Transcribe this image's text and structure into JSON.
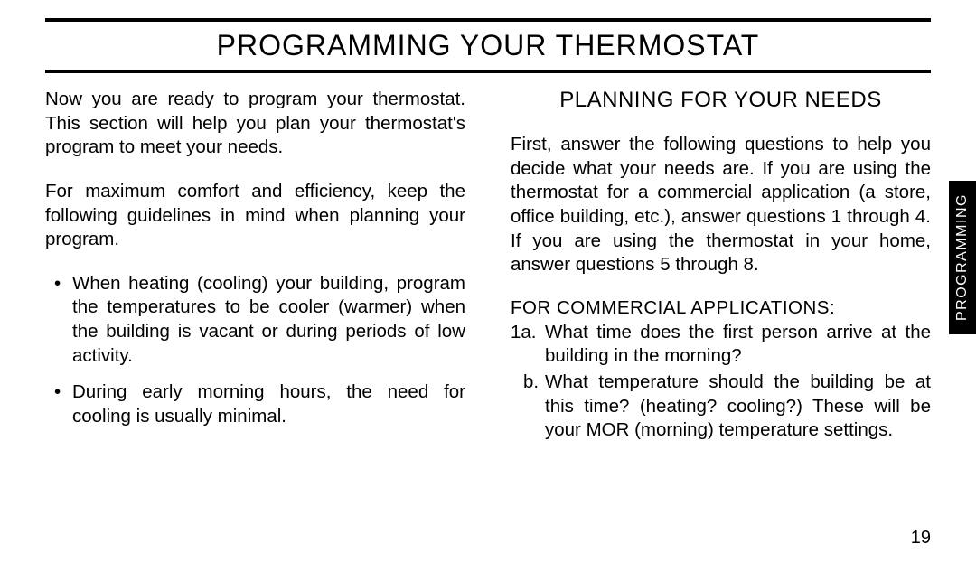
{
  "title": "PROGRAMMING YOUR THERMOSTAT",
  "side_tab": "PROGRAMMING",
  "page_number": "19",
  "left": {
    "para1": "Now you are ready to program your thermostat. This section will help you plan your thermostat's program to meet your needs.",
    "para2": "For maximum comfort and efficiency, keep the following guidelines in mind when planning your program.",
    "bullets": [
      "When heating (cooling) your building, program the temperatures to be cooler (warmer) when the building is vacant or during periods of low activity.",
      "During early morning hours, the need for cooling is usually minimal."
    ]
  },
  "right": {
    "subtitle": "PLANNING FOR YOUR NEEDS",
    "para1": "First, answer the following questions to help you decide what your needs are.  If you are using the thermostat for a commercial application (a store, office building, etc.), answer questions 1 through 4.  If you are using the thermostat in your home, answer questions 5 through 8.",
    "section_heading": "FOR COMMERCIAL APPLICATIONS:",
    "qa": [
      {
        "label": "1a.",
        "text": "What time does the first person arrive at the building in the morning?"
      },
      {
        "label": "b.",
        "text": "What temperature should the building be at this time? (heating? cooling?)  These will be your MOR (morning) temperature settings."
      }
    ]
  }
}
